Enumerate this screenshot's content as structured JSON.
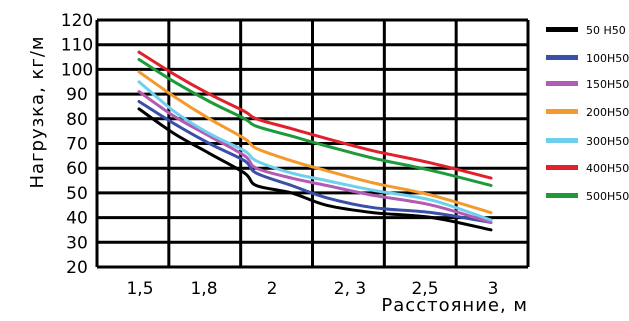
{
  "chart_data": {
    "type": "line",
    "xlabel": "Расстояние, м",
    "ylabel": "Нагрузка, кг/м",
    "categories": [
      "1,5",
      "1,8",
      "2",
      "2, 3",
      "2,5",
      "3"
    ],
    "x": [
      1.5,
      1.65,
      1.8,
      1.95,
      2.0,
      2.15,
      2.3,
      2.5,
      2.75,
      3.0
    ],
    "ylim": [
      20,
      120
    ],
    "yticks": [
      "20",
      "30",
      "40",
      "50",
      "60",
      "70",
      "80",
      "90",
      "100",
      "110",
      "120"
    ],
    "grid": true,
    "legend_position": "right",
    "series": [
      {
        "name": "50 Н50",
        "color": "#000000",
        "values": [
          84,
          74,
          66,
          58,
          53,
          50,
          45,
          42,
          40,
          35
        ]
      },
      {
        "name": "100Н50",
        "color": "#3a4fa8",
        "values": [
          87,
          78,
          70,
          63,
          58,
          53,
          48,
          44,
          42,
          38
        ]
      },
      {
        "name": "150Н50",
        "color": "#b35ab5",
        "values": [
          91,
          81,
          73,
          65,
          60,
          56,
          53,
          49,
          45,
          38
        ]
      },
      {
        "name": "200Н50",
        "color": "#f39a2b",
        "values": [
          99,
          89,
          80,
          72,
          68,
          63,
          59,
          54,
          49,
          42
        ]
      },
      {
        "name": "300Н50",
        "color": "#6fd0ee",
        "values": [
          95,
          83,
          74,
          67,
          63,
          58,
          55,
          51,
          47,
          39
        ]
      },
      {
        "name": "400Н50",
        "color": "#e0202a",
        "values": [
          107,
          98,
          90,
          83,
          80,
          76,
          72,
          67,
          62,
          56
        ]
      },
      {
        "name": "500Н50",
        "color": "#1f9a3a",
        "values": [
          104,
          95,
          87,
          80,
          77,
          73,
          69,
          64,
          59,
          53
        ]
      }
    ]
  }
}
